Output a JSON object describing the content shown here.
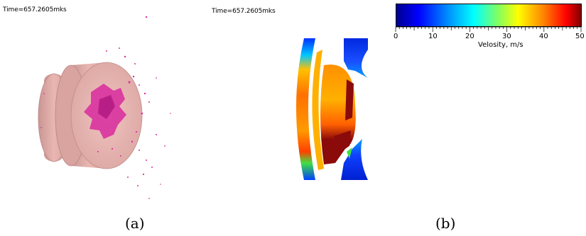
{
  "panel_a": {
    "time": "Time=657.2605mks",
    "label": "(a)"
  },
  "panel_b": {
    "time": "Time=657.2605mks",
    "label": "(b)"
  },
  "colorbar": {
    "title": "Velosity, m/s",
    "ticks": [
      "0",
      "10",
      "20",
      "30",
      "40",
      "50"
    ],
    "colormap": [
      "#00008f",
      "#0000ff",
      "#00a0ff",
      "#00ffff",
      "#80ff60",
      "#ffff00",
      "#ff8000",
      "#ff0000",
      "#800000"
    ]
  },
  "colors": {
    "disk": "#eab6b2",
    "disk_edge": "#c99693",
    "fragments": "#d8329e",
    "velocity_high": "#8b0a0a",
    "velocity_low": "#1a2fd8"
  }
}
